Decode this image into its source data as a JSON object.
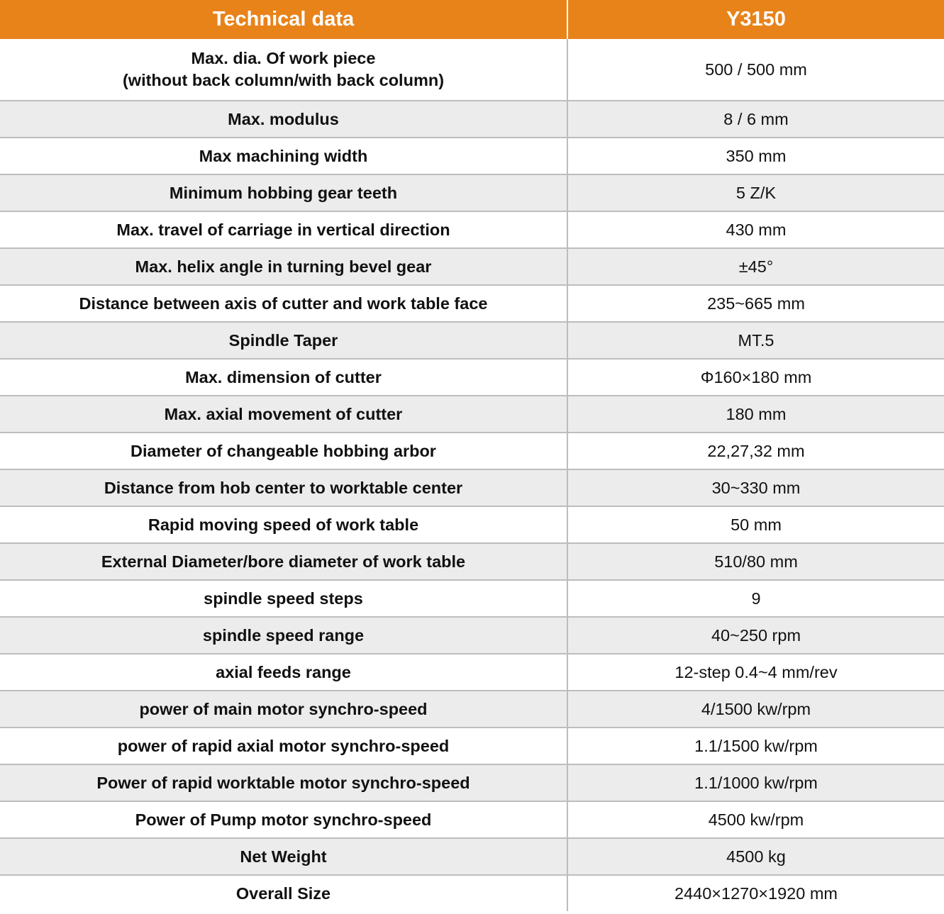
{
  "header": {
    "parameter": "Technical data",
    "model": "Y3150"
  },
  "rows": [
    {
      "parameter_line1": "Max. dia. Of work piece",
      "parameter_line2": "(without back column/with back column)",
      "value": "500 / 500 mm"
    },
    {
      "parameter": "Max. modulus",
      "value": "8 / 6 mm"
    },
    {
      "parameter": "Max machining width",
      "value": "350 mm"
    },
    {
      "parameter": "Minimum hobbing gear teeth",
      "value": "5 Z/K"
    },
    {
      "parameter": "Max. travel of carriage in vertical direction",
      "value": "430 mm"
    },
    {
      "parameter": "Max. helix angle in turning bevel gear",
      "value": "±45°"
    },
    {
      "parameter": "Distance between axis of cutter and work table face",
      "value": "235~665 mm"
    },
    {
      "parameter": "Spindle Taper",
      "value": "MT.5"
    },
    {
      "parameter": "Max. dimension of cutter",
      "value": "Φ160×180 mm"
    },
    {
      "parameter": "Max. axial movement of cutter",
      "value": "180 mm"
    },
    {
      "parameter": "Diameter of changeable hobbing arbor",
      "value": "22,27,32 mm"
    },
    {
      "parameter": "Distance from hob center to worktable center",
      "value": "30~330 mm"
    },
    {
      "parameter": "Rapid moving speed of work table",
      "value": "50 mm"
    },
    {
      "parameter": "External Diameter/bore diameter of work table",
      "value": "510/80 mm"
    },
    {
      "parameter": "spindle speed steps",
      "value": "9"
    },
    {
      "parameter": "spindle speed range",
      "value": "40~250 rpm"
    },
    {
      "parameter": "axial feeds range",
      "value": "12-step 0.4~4 mm/rev"
    },
    {
      "parameter": "power of main motor synchro-speed",
      "value": "4/1500 kw/rpm"
    },
    {
      "parameter": "power of rapid axial motor synchro-speed",
      "value": "1.1/1500 kw/rpm"
    },
    {
      "parameter": "Power of rapid worktable motor synchro-speed",
      "value": "1.1/1000 kw/rpm"
    },
    {
      "parameter": "Power of Pump motor synchro-speed",
      "value": "4500 kw/rpm"
    },
    {
      "parameter": "Net Weight",
      "value": "4500 kg"
    },
    {
      "parameter": "Overall Size",
      "value": "2440×1270×1920 mm"
    }
  ],
  "colors": {
    "header_bg": "#e8831a",
    "header_text": "#ffffff",
    "alt_row_bg": "#ececec",
    "border": "#bdbdbd"
  }
}
